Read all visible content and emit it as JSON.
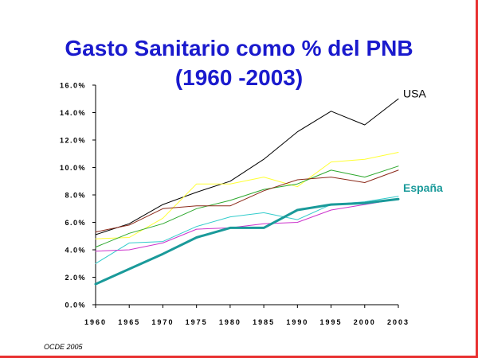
{
  "slide": {
    "title_line1": "Gasto Sanitario como % del PNB",
    "title_line2": "(1960 -2003)",
    "footnote": "OCDE 2005",
    "title_color": "#1a1acd",
    "border_color": "#e83030"
  },
  "chart_data": {
    "type": "line",
    "title": "Gasto Sanitario como % del PNB (1960 -2003)",
    "xlabel": "",
    "ylabel": "",
    "x": [
      "1960",
      "1965",
      "1970",
      "1975",
      "1980",
      "1985",
      "1990",
      "1995",
      "2000",
      "2003"
    ],
    "ylim": [
      0,
      16
    ],
    "yticks": [
      0,
      2,
      4,
      6,
      8,
      10,
      12,
      14,
      16
    ],
    "ytick_labels": [
      "0.0%",
      "2.0%",
      "4.0%",
      "6.0%",
      "8.0%",
      "10.0%",
      "12.0%",
      "14.0%",
      "16.0%"
    ],
    "grid": false,
    "series": [
      {
        "name": "USA",
        "label": "USA",
        "label_color": "#000000",
        "color": "#000000",
        "width": 1,
        "values": [
          5.1,
          5.9,
          7.3,
          8.2,
          9.0,
          10.6,
          12.6,
          14.1,
          13.1,
          15.0
        ]
      },
      {
        "color": "#ffff33",
        "width": 1,
        "values": [
          4.8,
          4.9,
          6.3,
          8.8,
          8.8,
          9.3,
          8.6,
          10.4,
          10.6,
          11.1
        ]
      },
      {
        "color": "#2ea82e",
        "width": 1,
        "values": [
          4.2,
          5.2,
          5.9,
          7.0,
          7.6,
          8.4,
          8.8,
          9.8,
          9.3,
          10.1
        ]
      },
      {
        "color": "#8b2a1a",
        "width": 1,
        "values": [
          5.3,
          5.8,
          7.0,
          7.2,
          7.2,
          8.3,
          9.1,
          9.3,
          8.9,
          9.8
        ]
      },
      {
        "color": "#33cccc",
        "width": 1,
        "values": [
          3.0,
          4.5,
          4.6,
          5.7,
          6.4,
          6.7,
          6.2,
          7.3,
          7.5,
          7.9
        ]
      },
      {
        "color": "#cc33cc",
        "width": 1,
        "values": [
          3.9,
          4.0,
          4.5,
          5.5,
          5.6,
          5.9,
          6.0,
          6.9,
          7.3,
          7.7
        ]
      },
      {
        "name": "España",
        "label": "España",
        "label_color": "#1a9a9a",
        "color": "#1a9a9a",
        "width": 3,
        "values": [
          1.5,
          2.6,
          3.7,
          4.9,
          5.6,
          5.6,
          6.9,
          7.3,
          7.4,
          7.7
        ]
      }
    ]
  }
}
